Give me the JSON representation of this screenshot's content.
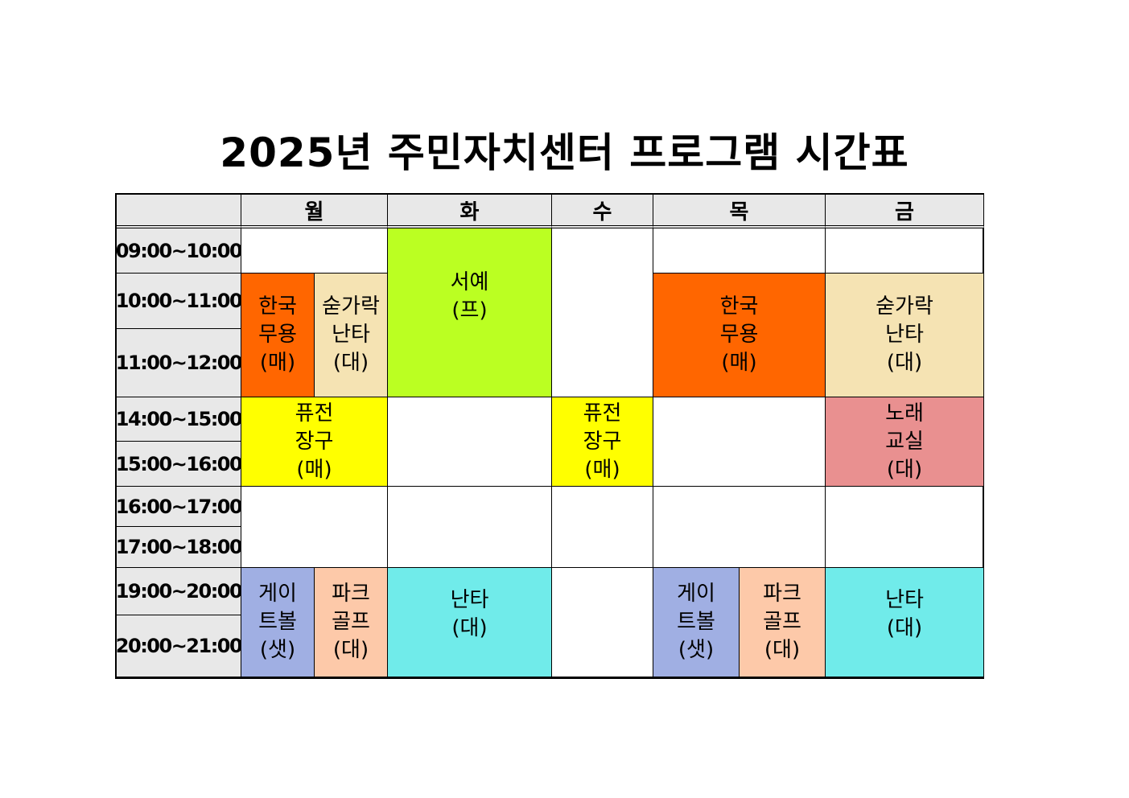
{
  "title": "2025년 주민자치센터 프로그램 시간표",
  "colors": {
    "header_bg": "#e8e8e8",
    "orange": "#ff6600",
    "beige": "#f5e3b3",
    "lime": "#bbff22",
    "yellow": "#ffff00",
    "pink": "#e99090",
    "blue": "#a0afe3",
    "peach": "#fdc9a9",
    "cyan": "#70ebea"
  },
  "days": [
    "월",
    "화",
    "수",
    "목",
    "금"
  ],
  "times": [
    "09:00~10:00",
    "10:00~11:00",
    "11:00~12:00",
    "14:00~15:00",
    "15:00~16:00",
    "16:00~17:00",
    "17:00~18:00",
    "19:00~20:00",
    "20:00~21:00"
  ],
  "programs": {
    "mon_korean_dance": [
      "한국",
      "무용",
      "(매)"
    ],
    "mon_chopstick_nanta": [
      "숟가락",
      "난타",
      "(대)"
    ],
    "tue_calligraphy": [
      "서예",
      "(프)"
    ],
    "thu_korean_dance": [
      "한국",
      "무용",
      "(매)"
    ],
    "fri_chopstick_nanta": [
      "숟가락",
      "난타",
      "(대)"
    ],
    "mon_fusion_janggu": [
      "퓨전",
      "장구",
      "(매)"
    ],
    "wed_fusion_janggu": [
      "퓨전",
      "장구",
      "(매)"
    ],
    "fri_singing_class": [
      "노래",
      "교실",
      "(대)"
    ],
    "mon_gateball": [
      "게이",
      "트볼",
      "(샛)"
    ],
    "mon_park_golf": [
      "파크",
      "골프",
      "(대)"
    ],
    "tue_nanta": [
      "난타",
      "(대)"
    ],
    "thu_gateball": [
      "게이",
      "트볼",
      "(샛)"
    ],
    "thu_park_golf": [
      "파크",
      "골프",
      "(대)"
    ],
    "fri_nanta": [
      "난타",
      "(대)"
    ]
  }
}
